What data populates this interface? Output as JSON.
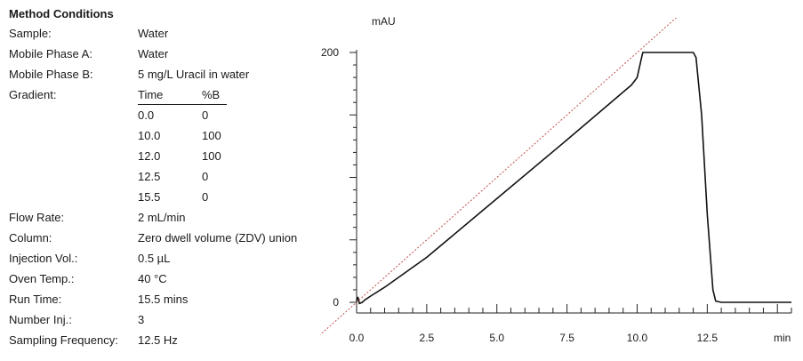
{
  "method": {
    "heading": "Method Conditions",
    "rows": [
      {
        "label": "Sample:",
        "value": "Water"
      },
      {
        "label": "Mobile Phase A:",
        "value": "Water"
      },
      {
        "label": "Mobile Phase B:",
        "value": "5 mg/L Uracil in water"
      }
    ],
    "gradient": {
      "label": "Gradient:",
      "headers": [
        "Time",
        "%B"
      ],
      "rows": [
        [
          "0.0",
          "0"
        ],
        [
          "10.0",
          "100"
        ],
        [
          "12.0",
          "100"
        ],
        [
          "12.5",
          "0"
        ],
        [
          "15.5",
          "0"
        ]
      ]
    },
    "rows2": [
      {
        "label": "Flow Rate:",
        "value": "2 mL/min"
      },
      {
        "label": "Column:",
        "value": "Zero dwell volume (ZDV) union"
      },
      {
        "label": "Injection Vol.:",
        "value": "0.5 µL"
      },
      {
        "label": "Oven Temp.:",
        "value": "40 °C"
      },
      {
        "label": "Run Time:",
        "value": "15.5 mins"
      },
      {
        "label": "Number Inj.:",
        "value": "3"
      },
      {
        "label": "Sampling Frequency:",
        "value": "12.5 Hz"
      }
    ]
  },
  "chart_data": {
    "type": "line",
    "xlabel": "min",
    "ylabel": "mAU",
    "xlim": [
      0,
      15.5
    ],
    "ylim": [
      0,
      200
    ],
    "x_ticks": [
      "0.0",
      "2.5",
      "5.0",
      "7.5",
      "10.0",
      "12.5"
    ],
    "x_tick_values": [
      0,
      2.5,
      5,
      7.5,
      10,
      12.5
    ],
    "y_ticks": [
      "0",
      "200"
    ],
    "y_tick_values": [
      0,
      200
    ],
    "series": [
      {
        "type": "trace",
        "x": [
          0,
          0.02,
          0.05,
          0.1,
          0.2,
          0.3,
          0.5,
          1.0,
          1.5,
          2.5,
          5.0,
          7.5,
          9.8,
          10.0,
          10.2,
          12.0,
          12.1,
          12.3,
          12.5,
          12.7,
          12.8,
          13.0,
          14.0,
          15.5
        ],
        "y": [
          0,
          3,
          4,
          -1,
          0,
          2,
          5,
          12,
          20,
          36,
          83,
          130,
          174,
          180,
          200,
          200,
          196,
          150,
          70,
          10,
          1,
          0,
          0,
          0
        ],
        "color": "#111111"
      },
      {
        "type": "ideal-gradient",
        "style": "dotted",
        "x": [
          -2,
          11.5
        ],
        "y": [
          -40,
          230
        ],
        "color": "#c0504d"
      }
    ]
  }
}
